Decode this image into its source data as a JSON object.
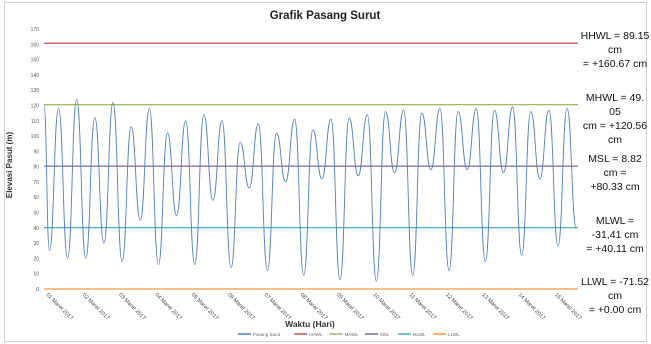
{
  "chart_data": {
    "type": "line",
    "title": "Grafik Pasang Surut",
    "xlabel": "Waktu (Hari)",
    "ylabel": "Elevasi Pasut (m)",
    "ylim": [
      0,
      170
    ],
    "ytick_step": 10,
    "xlim": [
      1,
      15.7
    ],
    "grid": false,
    "legend_position": "bottom",
    "x_tick_labels": [
      "01 Maret 2017",
      "02 Maret 2017",
      "03 Maret 2017",
      "04 Maret 2017",
      "05 Maret 2017",
      "06 Maret 2017",
      "07 Maret 2017",
      "08 Maret 2017",
      "09 Maret 2017",
      "10 Maret 2017",
      "11 Maret 2017",
      "12 Maret 2017",
      "13 Maret 2017",
      "14 Maret 2017",
      "15 Maret 2017"
    ],
    "reference_lines": [
      {
        "name": "HHWL",
        "value": 160.67,
        "color": "#c0504d",
        "label_lines": [
          "HHWL = 89.15 cm",
          "= +160.67 cm"
        ]
      },
      {
        "name": "MHWL",
        "value": 120.56,
        "color": "#9bbb59",
        "label_lines": [
          "MHWL = 49. 05",
          "cm = +120.56 cm"
        ]
      },
      {
        "name": "MSL",
        "value": 80.33,
        "color": "#8064a2",
        "label_lines": [
          "MSL = 8.82 cm =",
          "+80.33 cm"
        ]
      },
      {
        "name": "MLWL",
        "value": 40.11,
        "color": "#4bacc6",
        "label_lines": [
          "MLWL = -31,41 cm",
          "= +40.11 cm"
        ]
      },
      {
        "name": "LLWL",
        "value": 0.0,
        "color": "#f79646",
        "label_lines": [
          "LLWL = -71.52 cm",
          "= +0.00 cm"
        ]
      }
    ],
    "series": [
      {
        "name": "Pasang Surut",
        "color": "#4f81bd",
        "x": [
          1.0,
          1.15,
          1.4,
          1.65,
          1.9,
          2.15,
          2.4,
          2.65,
          2.9,
          3.15,
          3.4,
          3.65,
          3.9,
          4.15,
          4.4,
          4.65,
          4.9,
          5.15,
          5.4,
          5.65,
          5.9,
          6.15,
          6.4,
          6.65,
          6.9,
          7.15,
          7.4,
          7.65,
          7.9,
          8.15,
          8.4,
          8.65,
          8.9,
          9.15,
          9.4,
          9.65,
          9.9,
          10.15,
          10.4,
          10.65,
          10.9,
          11.15,
          11.4,
          11.65,
          11.9,
          12.15,
          12.4,
          12.65,
          12.9,
          13.15,
          13.4,
          13.65,
          13.9,
          14.15,
          14.4,
          14.65,
          14.9,
          15.15,
          15.4,
          15.65
        ],
        "values": [
          120,
          25,
          118,
          20,
          124,
          20,
          112,
          30,
          122,
          18,
          106,
          45,
          118,
          16,
          102,
          48,
          110,
          16,
          114,
          58,
          110,
          14,
          96,
          66,
          108,
          12,
          102,
          70,
          111,
          9,
          104,
          72,
          111,
          6,
          112,
          74,
          114,
          5,
          116,
          76,
          117,
          9,
          115,
          78,
          118,
          12,
          116,
          78,
          118,
          18,
          117,
          76,
          119,
          22,
          116,
          72,
          117,
          28,
          118,
          40
        ]
      }
    ],
    "legend": [
      "Pasang Surut",
      "HHWL",
      "MHWL",
      "MSL",
      "MLWL",
      "LLWL"
    ]
  }
}
